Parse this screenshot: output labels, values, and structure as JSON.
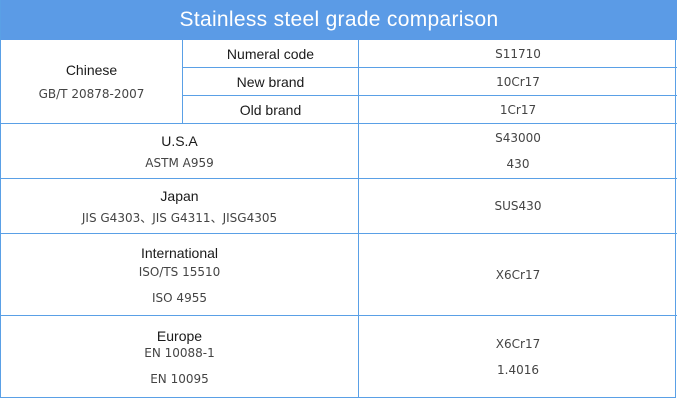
{
  "title": "Stainless steel grade comparison",
  "colors": {
    "header_bg": "#5b9be6",
    "border": "#5aa0e6"
  },
  "chinese": {
    "name": "Chinese",
    "standard": "GB/T 20878-2007",
    "rows": [
      {
        "label": "Numeral code",
        "value": "S11710"
      },
      {
        "label": "New brand",
        "value": "10Cr17"
      },
      {
        "label": "Old brand",
        "value": "1Cr17"
      }
    ]
  },
  "usa": {
    "name": "U.S.A",
    "standard": "ASTM A959",
    "values": [
      "S43000",
      "430"
    ]
  },
  "japan": {
    "name": "Japan",
    "standard": "JIS G4303、JIS G4311、JISG4305",
    "value": "SUS430"
  },
  "international": {
    "name": "International",
    "standards": [
      "ISO/TS 15510",
      "ISO 4955"
    ],
    "value": "X6Cr17"
  },
  "europe": {
    "name": "Europe",
    "standards": [
      "EN 10088-1",
      "EN 10095"
    ],
    "values": [
      "X6Cr17",
      "1.4016"
    ]
  }
}
